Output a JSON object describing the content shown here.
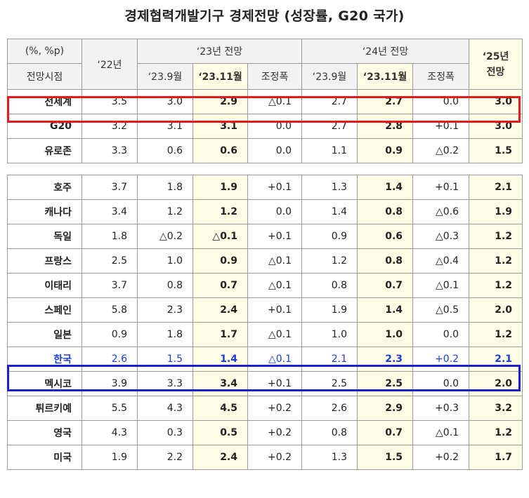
{
  "title": "경제협력개발기구 경제전망 (성장률, G20 국가)",
  "header": {
    "unit": "(%, %p)",
    "base": "전망시점",
    "y22": "‘22년",
    "y23": "‘23년 전망",
    "y24": "‘24년 전망",
    "y25_line1": "‘25년",
    "y25_line2": "전망",
    "sub": [
      "‘23.9월",
      "‘23.11월",
      "조정폭",
      "‘23.9월",
      "‘23.11월",
      "조정폭"
    ]
  },
  "group1": [
    {
      "name": "전세계",
      "v": [
        "3.5",
        "3.0",
        "2.9",
        "△0.1",
        "2.7",
        "2.7",
        "0.0",
        "3.0"
      ]
    },
    {
      "name": "G20",
      "v": [
        "3.2",
        "3.1",
        "3.1",
        "0.0",
        "2.7",
        "2.8",
        "+0.1",
        "3.0"
      ]
    },
    {
      "name": "유로존",
      "v": [
        "3.3",
        "0.6",
        "0.6",
        "0.0",
        "1.1",
        "0.9",
        "△0.2",
        "1.5"
      ]
    }
  ],
  "group2": [
    {
      "name": "호주",
      "v": [
        "3.7",
        "1.8",
        "1.9",
        "+0.1",
        "1.3",
        "1.4",
        "+0.1",
        "2.1"
      ]
    },
    {
      "name": "캐나다",
      "v": [
        "3.4",
        "1.2",
        "1.2",
        "0.0",
        "1.4",
        "0.8",
        "△0.6",
        "1.9"
      ]
    },
    {
      "name": "독일",
      "v": [
        "1.8",
        "△0.2",
        "△0.1",
        "+0.1",
        "0.9",
        "0.6",
        "△0.3",
        "1.2"
      ]
    },
    {
      "name": "프랑스",
      "v": [
        "2.5",
        "1.0",
        "0.9",
        "△0.1",
        "1.2",
        "0.8",
        "△0.4",
        "1.2"
      ]
    },
    {
      "name": "이태리",
      "v": [
        "3.7",
        "0.8",
        "0.7",
        "△0.1",
        "0.8",
        "0.7",
        "△0.1",
        "1.2"
      ]
    },
    {
      "name": "스페인",
      "v": [
        "5.8",
        "2.3",
        "2.4",
        "+0.1",
        "1.9",
        "1.4",
        "△0.5",
        "2.0"
      ]
    },
    {
      "name": "일본",
      "v": [
        "0.9",
        "1.8",
        "1.7",
        "△0.1",
        "1.0",
        "1.0",
        "0.0",
        "1.2"
      ]
    },
    {
      "name": "한국",
      "v": [
        "2.6",
        "1.5",
        "1.4",
        "△0.1",
        "2.1",
        "2.3",
        "+0.2",
        "2.1"
      ]
    },
    {
      "name": "멕시코",
      "v": [
        "3.9",
        "3.3",
        "3.4",
        "+0.1",
        "2.5",
        "2.5",
        "0.0",
        "2.0"
      ]
    },
    {
      "name": "튀르키예",
      "v": [
        "5.5",
        "4.3",
        "4.5",
        "+0.2",
        "2.6",
        "2.9",
        "+0.3",
        "3.2"
      ]
    },
    {
      "name": "영국",
      "v": [
        "4.3",
        "0.3",
        "0.5",
        "+0.2",
        "0.8",
        "0.7",
        "△0.1",
        "1.2"
      ]
    },
    {
      "name": "미국",
      "v": [
        "1.9",
        "2.2",
        "2.4",
        "+0.2",
        "1.3",
        "1.5",
        "+0.2",
        "1.7"
      ]
    }
  ],
  "colors": {
    "highlight_red": "#e8171b",
    "highlight_blue": "#1a1fd6",
    "korea_text": "#1a3fd6",
    "cell_highlight": "#fffde6"
  }
}
